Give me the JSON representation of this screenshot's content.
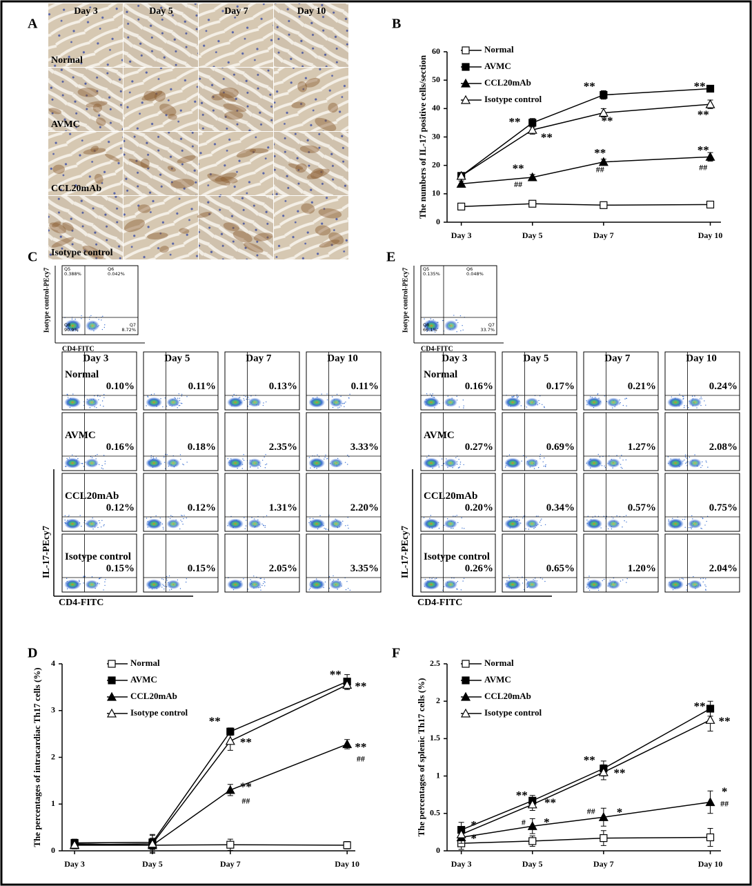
{
  "figure": {
    "panel_a": {
      "label": "A",
      "columns": [
        "Day 3",
        "Day 5",
        "Day 7",
        "Day 10"
      ],
      "rows": [
        "Normal",
        "AVMC",
        "CCL20mAb",
        "Isotype control"
      ]
    },
    "panel_c": {
      "label": "C",
      "isotype": {
        "y_label": "Isotype control-PEcy7",
        "x_label": "CD4-FITC",
        "quadrants": [
          {
            "name": "Q5",
            "value": "0.388%"
          },
          {
            "name": "Q6",
            "value": "0.042%"
          },
          {
            "name": "Q8",
            "value": "90.9%"
          },
          {
            "name": "Q7",
            "value": "8.72%"
          }
        ]
      },
      "columns": [
        "Day 3",
        "Day 5",
        "Day 7",
        "Day 10"
      ],
      "rows": [
        {
          "name": "Normal",
          "percents": [
            "0.10%",
            "0.11%",
            "0.13%",
            "0.11%"
          ]
        },
        {
          "name": "AVMC",
          "percents": [
            "0.16%",
            "0.18%",
            "2.35%",
            "3.33%"
          ]
        },
        {
          "name": "CCL20mAb",
          "percents": [
            "0.12%",
            "0.12%",
            "1.31%",
            "2.20%"
          ]
        },
        {
          "name": "Isotype control",
          "percents": [
            "0.15%",
            "0.15%",
            "2.05%",
            "3.35%"
          ]
        }
      ],
      "y_label": "IL-17-PEcy7",
      "x_label": "CD4-FITC"
    },
    "panel_e": {
      "label": "E",
      "isotype": {
        "y_label": "Isotype control-PEcy7",
        "x_label": "CD4-FITC",
        "quadrants": [
          {
            "name": "Q5",
            "value": "0.135%"
          },
          {
            "name": "Q6",
            "value": "0.048%"
          },
          {
            "name": "Q8",
            "value": "66.1%"
          },
          {
            "name": "Q7",
            "value": "33.7%"
          }
        ]
      },
      "columns": [
        "Day 3",
        "Day 5",
        "Day 7",
        "Day 10"
      ],
      "rows": [
        {
          "name": "Normal",
          "percents": [
            "0.16%",
            "0.17%",
            "0.21%",
            "0.24%"
          ]
        },
        {
          "name": "AVMC",
          "percents": [
            "0.27%",
            "0.69%",
            "1.27%",
            "2.08%"
          ]
        },
        {
          "name": "CCL20mAb",
          "percents": [
            "0.20%",
            "0.34%",
            "0.57%",
            "0.75%"
          ]
        },
        {
          "name": "Isotype control",
          "percents": [
            "0.26%",
            "0.65%",
            "1.20%",
            "2.04%"
          ]
        }
      ],
      "y_label": "IL-17-PEcy7",
      "x_label": "CD4-FITC"
    }
  },
  "chart_data": [
    {
      "type": "line",
      "panel_label": "B",
      "y_label": "The numbers of IL-17 positive cells/section",
      "x": [
        3,
        5,
        7,
        10
      ],
      "xlim": [
        2.6,
        10.3
      ],
      "xticks": [
        {
          "value": 3,
          "label": "Day 3"
        },
        {
          "value": 5,
          "label": "Day 5"
        },
        {
          "value": 7,
          "label": "Day 7"
        },
        {
          "value": 10,
          "label": "Day 10"
        }
      ],
      "ylim": [
        0,
        60
      ],
      "yticks": [
        0,
        10,
        20,
        30,
        40,
        50,
        60
      ],
      "series": [
        {
          "name": "Normal",
          "color": "#000000",
          "marker": "open-square",
          "values": [
            5.5,
            6.5,
            6,
            6.2
          ],
          "errors": [
            0.5,
            0.5,
            0.5,
            0.5
          ]
        },
        {
          "name": "AVMC",
          "color": "#000000",
          "marker": "filled-square",
          "values": [
            16.3,
            35,
            44.8,
            47
          ],
          "errors": [
            1,
            1.5,
            1.5,
            1
          ]
        },
        {
          "name": "CCL20mAb",
          "color": "#000000",
          "marker": "filled-triangle",
          "values": [
            13.5,
            15.8,
            21.2,
            23
          ],
          "errors": [
            1,
            1,
            1,
            1.5
          ]
        },
        {
          "name": "Isotype control",
          "color": "#000000",
          "marker": "open-triangle",
          "values": [
            16.3,
            32.5,
            38.5,
            41.5
          ],
          "errors": [
            1,
            1.5,
            1.5,
            1.5
          ]
        }
      ],
      "annotations": [
        {
          "text": "**",
          "x": 4.5,
          "y": 35
        },
        {
          "text": "**",
          "x": 5.4,
          "y": 29.5
        },
        {
          "text": "**",
          "x": 6.6,
          "y": 47.5
        },
        {
          "text": "**",
          "x": 7.1,
          "y": 35.3
        },
        {
          "text": "**",
          "x": 9.7,
          "y": 47.5
        },
        {
          "text": "**",
          "x": 9.8,
          "y": 37.5
        },
        {
          "text": "**",
          "x": 4.6,
          "y": 18.5
        },
        {
          "text": "##",
          "x": 4.6,
          "y": 13
        },
        {
          "text": "**",
          "x": 6.9,
          "y": 24
        },
        {
          "text": "##",
          "x": 6.9,
          "y": 18.3
        },
        {
          "text": "**",
          "x": 9.8,
          "y": 25
        },
        {
          "text": "##",
          "x": 9.8,
          "y": 19
        }
      ]
    },
    {
      "type": "line",
      "panel_label": "D",
      "y_label": "The percentages of intracardiac Th17 cells (%)",
      "x": [
        3,
        5,
        7,
        10
      ],
      "xlim": [
        2.68,
        10.21
      ],
      "xticks": [
        {
          "value": 3,
          "label": "Day 3"
        },
        {
          "value": 5,
          "label": "Day 5"
        },
        {
          "value": 7,
          "label": "Day 7"
        },
        {
          "value": 10,
          "label": "Day 10"
        }
      ],
      "ylim": [
        0,
        4
      ],
      "yticks": [
        0,
        1,
        2,
        3,
        4
      ],
      "series": [
        {
          "name": "Normal",
          "color": "#000000",
          "marker": "open-square",
          "values": [
            0.15,
            0.12,
            0.13,
            0.12
          ],
          "errors": [
            0.08,
            0.08,
            0.12,
            0.08
          ]
        },
        {
          "name": "AVMC",
          "color": "#000000",
          "marker": "filled-square",
          "values": [
            0.17,
            0.18,
            2.55,
            3.62
          ],
          "errors": [
            0.08,
            0.15,
            0.08,
            0.15
          ]
        },
        {
          "name": "CCL20mAb",
          "color": "#000000",
          "marker": "filled-triangle",
          "values": [
            0.12,
            0.12,
            1.3,
            2.28
          ],
          "errors": [
            0.08,
            0.15,
            0.12,
            0.1
          ]
        },
        {
          "name": "Isotype control",
          "color": "#000000",
          "marker": "open-triangle",
          "values": [
            0.13,
            0.15,
            2.35,
            3.55
          ],
          "errors": [
            0.08,
            0.2,
            0.2,
            0.1
          ]
        }
      ],
      "annotations": [
        {
          "text": "**",
          "x": 6.6,
          "y": 2.75
        },
        {
          "text": "**",
          "x": 7.4,
          "y": 2.3
        },
        {
          "text": "**",
          "x": 7.4,
          "y": 1.35
        },
        {
          "text": "##",
          "x": 7.4,
          "y": 1.05
        },
        {
          "text": "**",
          "x": 9.7,
          "y": 3.75
        },
        {
          "text": "**",
          "x": 10.35,
          "y": 3.5
        },
        {
          "text": "**",
          "x": 10.35,
          "y": 2.2
        },
        {
          "text": "##",
          "x": 10.35,
          "y": 1.95
        }
      ]
    },
    {
      "type": "line",
      "panel_label": "F",
      "y_label": "The percentages of splenic Th17 cells (%)",
      "x": [
        3,
        5,
        7,
        10
      ],
      "xlim": [
        2.6,
        10.3
      ],
      "xticks": [
        {
          "value": 3,
          "label": "Day 3"
        },
        {
          "value": 5,
          "label": "Day 5"
        },
        {
          "value": 7,
          "label": "Day 7"
        },
        {
          "value": 10,
          "label": "Day 10"
        }
      ],
      "ylim": [
        0,
        2.5
      ],
      "yticks": [
        0,
        0.5,
        1,
        1.5,
        2,
        2.5
      ],
      "series": [
        {
          "name": "Normal",
          "color": "#000000",
          "marker": "open-square",
          "values": [
            0.1,
            0.13,
            0.17,
            0.18
          ],
          "errors": [
            0.08,
            0.07,
            0.1,
            0.12
          ]
        },
        {
          "name": "AVMC",
          "color": "#000000",
          "marker": "filled-square",
          "values": [
            0.28,
            0.67,
            1.1,
            1.9
          ],
          "errors": [
            0.1,
            0.07,
            0.1,
            0.1
          ]
        },
        {
          "name": "CCL20mAb",
          "color": "#000000",
          "marker": "filled-triangle",
          "values": [
            0.18,
            0.33,
            0.45,
            0.65
          ],
          "errors": [
            0.08,
            0.1,
            0.12,
            0.15
          ]
        },
        {
          "name": "Isotype control",
          "color": "#000000",
          "marker": "open-triangle",
          "values": [
            0.22,
            0.62,
            1.05,
            1.75
          ],
          "errors": [
            0.08,
            0.08,
            0.1,
            0.15
          ]
        }
      ],
      "annotations": [
        {
          "text": "*",
          "x": 3.35,
          "y": 0.33
        },
        {
          "text": "*",
          "x": 3.35,
          "y": 0.15
        },
        {
          "text": "**",
          "x": 4.7,
          "y": 0.73
        },
        {
          "text": "**",
          "x": 5.5,
          "y": 0.63
        },
        {
          "text": "#",
          "x": 4.75,
          "y": 0.37
        },
        {
          "text": "*",
          "x": 5.4,
          "y": 0.37
        },
        {
          "text": "**",
          "x": 6.6,
          "y": 1.2
        },
        {
          "text": "**",
          "x": 7.45,
          "y": 1.03
        },
        {
          "text": "##",
          "x": 6.65,
          "y": 0.52
        },
        {
          "text": "*",
          "x": 7.45,
          "y": 0.5
        },
        {
          "text": "**",
          "x": 9.7,
          "y": 1.92
        },
        {
          "text": "**",
          "x": 10.4,
          "y": 1.72
        },
        {
          "text": "*",
          "x": 10.4,
          "y": 0.78
        },
        {
          "text": "##",
          "x": 10.4,
          "y": 0.62
        }
      ]
    }
  ]
}
